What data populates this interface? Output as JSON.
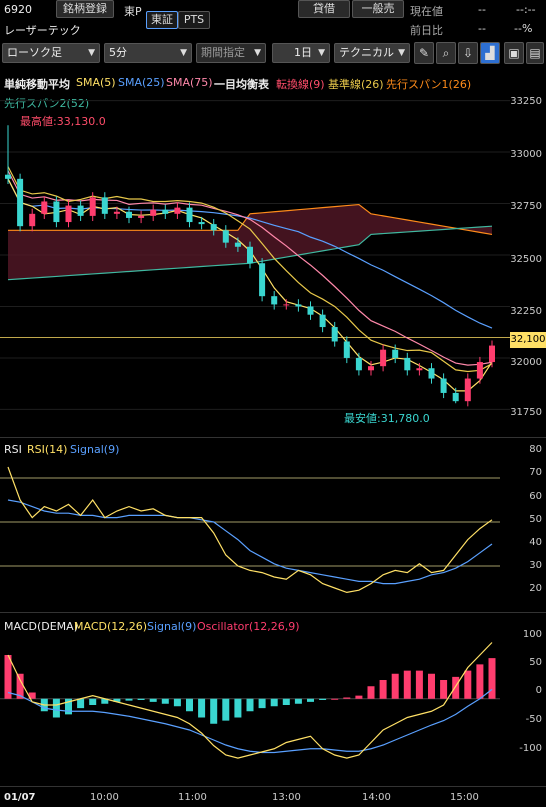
{
  "header": {
    "code": "6920",
    "add_button": "銘柄登録",
    "market": "東P",
    "tab_tosho": "東証",
    "tab_pts": "PTS",
    "name": "レーザーテック",
    "btn_kashi": "貸借",
    "btn_ippan": "一般売",
    "current_label": "現在値",
    "current_value": "--",
    "current_value2": "--:--",
    "prev_ratio_label": "前日比",
    "prev_ratio_value": "--",
    "prev_ratio_pct": "--%"
  },
  "toolbar": {
    "chart_type": "ローソク足",
    "interval": "5分",
    "period": "期間指定",
    "range": "1日",
    "technical": "テクニカル",
    "icons": [
      "pencil-icon",
      "zoom-icon",
      "output-icon",
      "chart-icon",
      "save-icon",
      "layout-icon"
    ]
  },
  "indicators": {
    "main_title": "単純移動平均",
    "sma5": "SMA(5)",
    "sma25": "SMA(25)",
    "sma75": "SMA(75)",
    "ichimoku": "一目均衡表",
    "tenkan": "転換線(9)",
    "kijun": "基準線(26)",
    "span1": "先行スパン1(26)",
    "span2": "先行スパン2(52)",
    "high_label": "最高値:33,130.0",
    "low_label": "最安値:31,780.0",
    "price_tag": "32,100"
  },
  "price_axis": [
    "33250",
    "33000",
    "32750",
    "32500",
    "32250",
    "32000",
    "31750"
  ],
  "rsi": {
    "title": "RSI",
    "rsi": "RSI(14)",
    "signal": "Signal(9)",
    "axis": [
      "80",
      "70",
      "60",
      "50",
      "40",
      "30",
      "20"
    ]
  },
  "macd": {
    "title": "MACD(DEMA)",
    "macd": "MACD(12,26)",
    "signal": "Signal(9)",
    "osc": "Oscillator(12,26,9)",
    "axis": [
      "100",
      "50",
      "0",
      "-50",
      "-100"
    ]
  },
  "xaxis": {
    "date": "01/07",
    "ticks": [
      "10:00",
      "11:00",
      "13:00",
      "14:00",
      "15:00"
    ]
  },
  "colors": {
    "sma5": "#ffe066",
    "sma25": "#5aa0ff",
    "sma75": "#ff88aa",
    "tenkan": "#ff4d6a",
    "kijun": "#e8c84a",
    "span1": "#ff8c1a",
    "span2": "#3fb8a0",
    "up": "#ff3d6e",
    "down": "#3ad6d0"
  },
  "chart_data": [
    {
      "type": "candlestick",
      "title": "単純移動平均 / 一目均衡表",
      "ylim": [
        31650,
        33350
      ],
      "close": [
        32870,
        32640,
        32700,
        32760,
        32660,
        32740,
        32690,
        32780,
        32700,
        32710,
        32680,
        32690,
        32720,
        32700,
        32730,
        32660,
        32650,
        32620,
        32560,
        32540,
        32460,
        32300,
        32260,
        32260,
        32250,
        32210,
        32150,
        32080,
        32000,
        31940,
        31960,
        32040,
        32000,
        31940,
        31950,
        31900,
        31830,
        31790,
        31900,
        31980,
        32060
      ],
      "max": 33130,
      "min": 31780,
      "last_marker": 32100
    },
    {
      "type": "line",
      "title": "RSI",
      "ylim": [
        10,
        85
      ],
      "series": [
        {
          "name": "RSI(14)",
          "values": [
            75,
            60,
            52,
            57,
            55,
            58,
            53,
            60,
            52,
            55,
            57,
            55,
            56,
            53,
            52,
            52,
            52,
            45,
            35,
            30,
            28,
            27,
            25,
            24,
            28,
            26,
            22,
            20,
            18,
            19,
            22,
            26,
            28,
            27,
            31,
            27,
            28,
            35,
            42,
            47,
            51
          ]
        },
        {
          "name": "Signal(9)",
          "values": [
            60,
            59,
            57,
            55,
            54,
            54,
            53,
            53,
            52,
            52,
            53,
            53,
            53,
            53,
            52,
            52,
            51,
            50,
            46,
            42,
            37,
            34,
            31,
            29,
            28,
            27,
            26,
            25,
            24,
            23,
            23,
            22,
            22,
            23,
            24,
            26,
            27,
            29,
            32,
            36,
            40
          ]
        }
      ]
    },
    {
      "type": "bar",
      "title": "MACD(DEMA)",
      "ylim": [
        -130,
        110
      ],
      "series": [
        {
          "name": "Oscillator(12,26,9)",
          "values": [
            70,
            40,
            10,
            -20,
            -30,
            -25,
            -15,
            -10,
            -8,
            -5,
            -3,
            -2,
            -5,
            -8,
            -12,
            -20,
            -30,
            -40,
            -35,
            -30,
            -20,
            -15,
            -12,
            -10,
            -8,
            -5,
            -2,
            0,
            2,
            5,
            20,
            30,
            40,
            45,
            45,
            40,
            30,
            35,
            45,
            55,
            65
          ]
        },
        {
          "name": "MACD(12,26)",
          "values": [
            70,
            30,
            -5,
            -10,
            -10,
            -5,
            0,
            5,
            0,
            -5,
            -10,
            -15,
            -20,
            -25,
            -30,
            -40,
            -55,
            -75,
            -90,
            -95,
            -90,
            -85,
            -80,
            -70,
            -65,
            -60,
            -80,
            -90,
            -95,
            -90,
            -70,
            -50,
            -40,
            -30,
            -25,
            -20,
            -10,
            20,
            50,
            70,
            90
          ]
        },
        {
          "name": "Signal(9)",
          "values": [
            10,
            5,
            -5,
            -15,
            -18,
            -20,
            -20,
            -20,
            -22,
            -25,
            -28,
            -32,
            -36,
            -40,
            -45,
            -50,
            -58,
            -66,
            -74,
            -80,
            -84,
            -86,
            -86,
            -84,
            -82,
            -80,
            -80,
            -82,
            -84,
            -84,
            -80,
            -74,
            -66,
            -58,
            -50,
            -42,
            -35,
            -25,
            -12,
            0,
            15
          ]
        }
      ]
    }
  ]
}
